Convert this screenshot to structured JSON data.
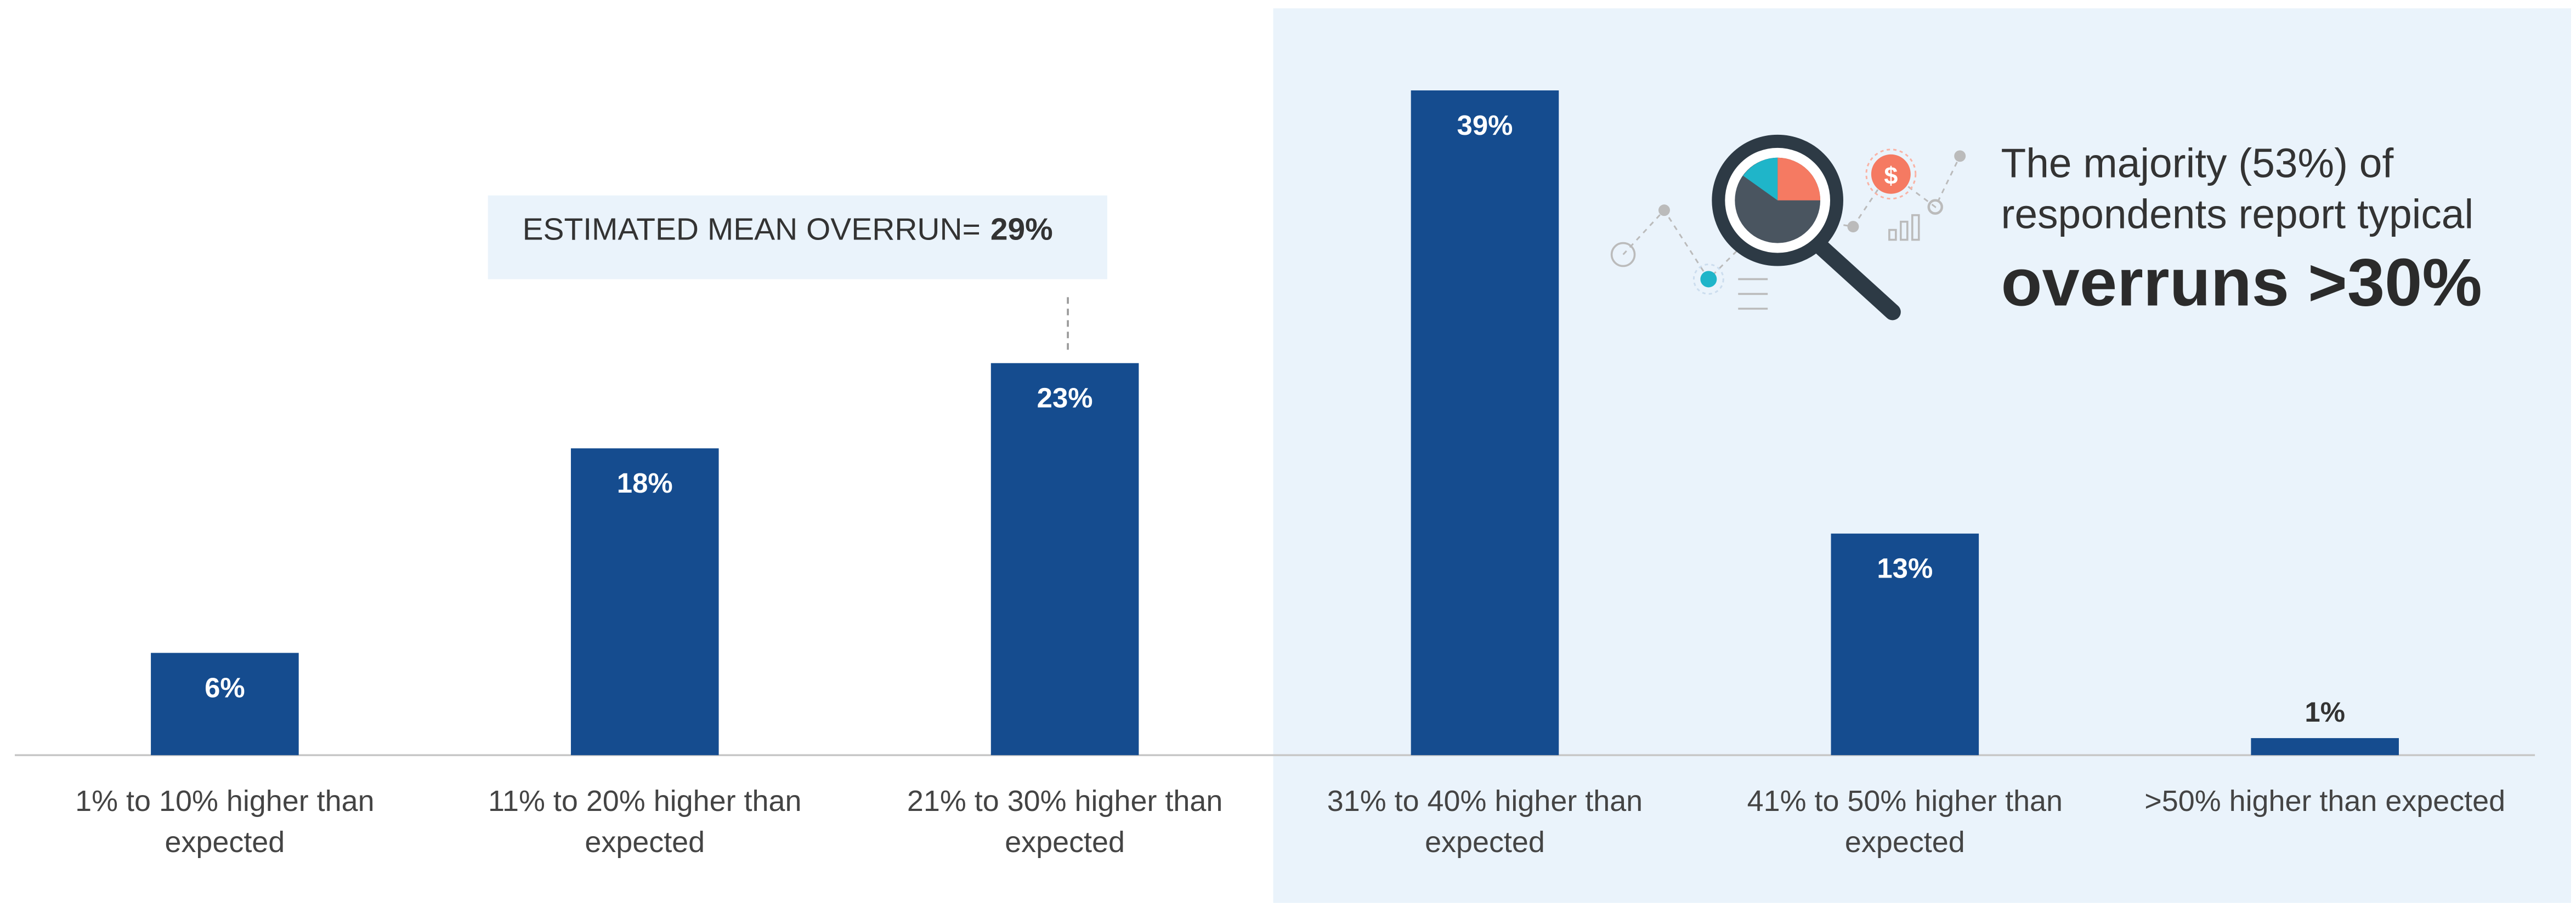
{
  "chart_data": {
    "type": "bar",
    "categories": [
      "1% to 10% higher than expected",
      "11% to 20% higher than expected",
      "21% to 30% higher than expected",
      "31% to 40% higher than expected",
      "41% to 50% higher than expected",
      ">50% higher than expected"
    ],
    "values": [
      6,
      18,
      23,
      39,
      13,
      1
    ],
    "value_labels": [
      "6%",
      "18%",
      "23%",
      "39%",
      "13%",
      "1%"
    ],
    "color": "#154c8f",
    "annotation_label": "ESTIMATED MEAN OVERRUN=",
    "annotation_value": "29%",
    "callout_lines": [
      "The majority (53%) of",
      "respondents report typical"
    ],
    "callout_emphasis": "overruns >30%"
  }
}
